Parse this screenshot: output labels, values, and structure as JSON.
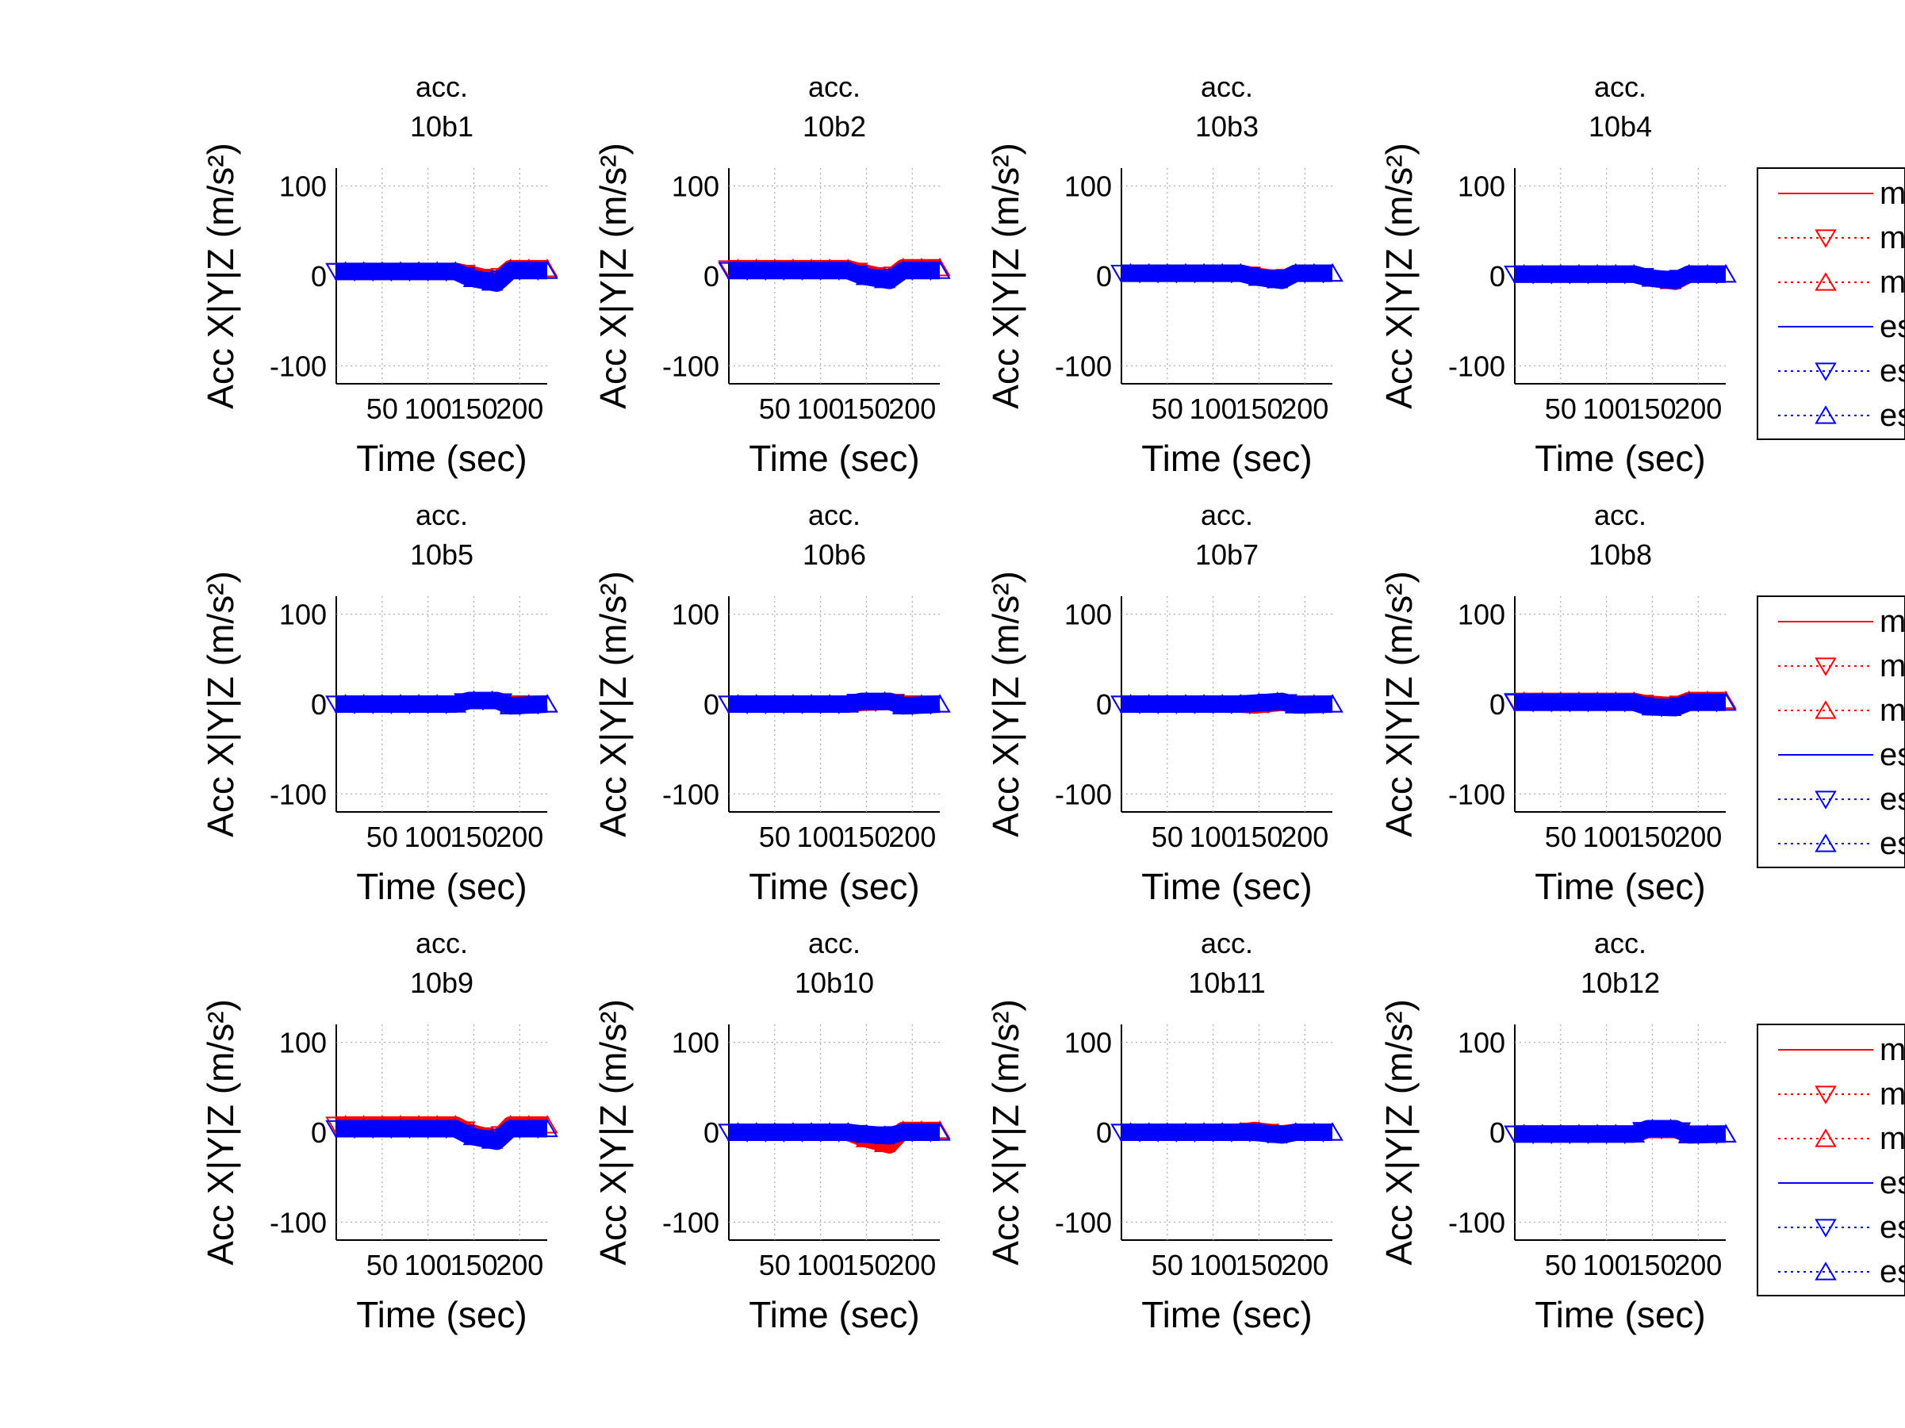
{
  "figure": {
    "common": {
      "xlabel": "Time (sec)",
      "ylabel": "Acc X|Y|Z (m/s²)",
      "title_prefix": "acc.",
      "xticks": [
        50,
        100,
        150,
        200
      ],
      "yticks": [
        -100,
        0,
        100
      ],
      "xlim": [
        0,
        230
      ],
      "ylim": [
        -120,
        120
      ],
      "grid": true
    },
    "legend": {
      "entries": [
        {
          "label": "m",
          "color": "#ff0000",
          "line": "solid",
          "marker": "none"
        },
        {
          "label": "m",
          "color": "#ff0000",
          "line": "dotted",
          "marker": "triangle-down"
        },
        {
          "label": "m",
          "color": "#ff0000",
          "line": "dotted",
          "marker": "triangle-up"
        },
        {
          "label": "es",
          "color": "#0000ff",
          "line": "solid",
          "marker": "none"
        },
        {
          "label": "es",
          "color": "#0000ff",
          "line": "dotted",
          "marker": "triangle-down"
        },
        {
          "label": "estimated z",
          "color": "#0000ff",
          "line": "dotted",
          "marker": "triangle-up"
        }
      ]
    }
  },
  "chart_data": [
    {
      "type": "line",
      "title": [
        "acc.",
        "10b1"
      ],
      "xlabel": "Time (sec)",
      "ylabel": "Acc X|Y|Z (m/s²)",
      "xlim": [
        0,
        230
      ],
      "ylim": [
        -120,
        120
      ],
      "x": [
        0,
        130,
        145,
        175,
        190,
        230
      ],
      "series": [
        {
          "name": "",
          "color": "#ff0000",
          "values": [
            5,
            5,
            2,
            -5,
            8,
            8
          ]
        },
        {
          "name": "",
          "color": "#0000ff",
          "values": [
            5,
            5,
            -2,
            -8,
            6,
            6
          ]
        }
      ]
    },
    {
      "type": "line",
      "title": [
        "acc.",
        "10b2"
      ],
      "xlabel": "Time (sec)",
      "ylabel": "Acc X|Y|Z (m/s²)",
      "xlim": [
        0,
        230
      ],
      "ylim": [
        -120,
        120
      ],
      "x": [
        0,
        130,
        145,
        175,
        190,
        230
      ],
      "series": [
        {
          "name": "",
          "color": "#ff0000",
          "values": [
            8,
            8,
            4,
            -3,
            9,
            9
          ]
        },
        {
          "name": "",
          "color": "#0000ff",
          "values": [
            6,
            6,
            0,
            -5,
            6,
            6
          ]
        }
      ]
    },
    {
      "type": "line",
      "title": [
        "acc.",
        "10b3"
      ],
      "xlabel": "Time (sec)",
      "ylabel": "Acc X|Y|Z (m/s²)",
      "xlim": [
        0,
        230
      ],
      "ylim": [
        -120,
        120
      ],
      "x": [
        0,
        130,
        145,
        175,
        190,
        230
      ],
      "series": [
        {
          "name": "",
          "color": "#ff0000",
          "values": [
            3,
            3,
            0,
            -4,
            3,
            3
          ]
        },
        {
          "name": "",
          "color": "#0000ff",
          "values": [
            3,
            3,
            -1,
            -5,
            3,
            3
          ]
        }
      ]
    },
    {
      "type": "line",
      "title": [
        "acc.",
        "10b4"
      ],
      "xlabel": "Time (sec)",
      "ylabel": "Acc X|Y|Z (m/s²)",
      "xlim": [
        0,
        230
      ],
      "ylim": [
        -120,
        120
      ],
      "x": [
        0,
        130,
        145,
        175,
        190,
        230
      ],
      "series": [
        {
          "name": "",
          "color": "#ff0000",
          "values": [
            2,
            2,
            -2,
            -6,
            2,
            2
          ]
        },
        {
          "name": "",
          "color": "#0000ff",
          "values": [
            2,
            2,
            -2,
            -5,
            2,
            2
          ]
        }
      ]
    },
    {
      "type": "line",
      "title": [
        "acc.",
        "10b5"
      ],
      "xlabel": "Time (sec)",
      "ylabel": "Acc X|Y|Z (m/s²)",
      "xlim": [
        0,
        230
      ],
      "ylim": [
        -120,
        120
      ],
      "x": [
        0,
        130,
        145,
        175,
        190,
        230
      ],
      "series": [
        {
          "name": "",
          "color": "#ff0000",
          "values": [
            0,
            0,
            4,
            4,
            0,
            0
          ]
        },
        {
          "name": "",
          "color": "#0000ff",
          "values": [
            0,
            0,
            4,
            4,
            -2,
            0
          ]
        }
      ]
    },
    {
      "type": "line",
      "title": [
        "acc.",
        "10b6"
      ],
      "xlabel": "Time (sec)",
      "ylabel": "Acc X|Y|Z (m/s²)",
      "xlim": [
        0,
        230
      ],
      "ylim": [
        -120,
        120
      ],
      "x": [
        0,
        130,
        145,
        175,
        190,
        230
      ],
      "series": [
        {
          "name": "",
          "color": "#ff0000",
          "values": [
            0,
            0,
            2,
            3,
            0,
            0
          ]
        },
        {
          "name": "",
          "color": "#0000ff",
          "values": [
            0,
            0,
            3,
            3,
            -2,
            0
          ]
        }
      ]
    },
    {
      "type": "line",
      "title": [
        "acc.",
        "10b7"
      ],
      "xlabel": "Time (sec)",
      "ylabel": "Acc X|Y|Z (m/s²)",
      "xlim": [
        0,
        230
      ],
      "ylim": [
        -120,
        120
      ],
      "x": [
        0,
        130,
        145,
        175,
        190,
        230
      ],
      "series": [
        {
          "name": "",
          "color": "#ff0000",
          "values": [
            0,
            0,
            -1,
            2,
            0,
            0
          ]
        },
        {
          "name": "",
          "color": "#0000ff",
          "values": [
            0,
            0,
            1,
            3,
            -1,
            0
          ]
        }
      ]
    },
    {
      "type": "line",
      "title": [
        "acc.",
        "10b8"
      ],
      "xlabel": "Time (sec)",
      "ylabel": "Acc X|Y|Z (m/s²)",
      "xlim": [
        0,
        230
      ],
      "ylim": [
        -120,
        120
      ],
      "x": [
        0,
        130,
        145,
        175,
        190,
        230
      ],
      "series": [
        {
          "name": "",
          "color": "#ff0000",
          "values": [
            3,
            3,
            0,
            -2,
            4,
            4
          ]
        },
        {
          "name": "",
          "color": "#0000ff",
          "values": [
            2,
            2,
            -3,
            -4,
            2,
            2
          ]
        }
      ]
    },
    {
      "type": "line",
      "title": [
        "acc.",
        "10b9"
      ],
      "xlabel": "Time (sec)",
      "ylabel": "Acc X|Y|Z (m/s²)",
      "xlim": [
        0,
        230
      ],
      "ylim": [
        -120,
        120
      ],
      "x": [
        0,
        130,
        145,
        175,
        190,
        230
      ],
      "series": [
        {
          "name": "",
          "color": "#ff0000",
          "values": [
            8,
            8,
            0,
            -8,
            8,
            8
          ]
        },
        {
          "name": "",
          "color": "#0000ff",
          "values": [
            4,
            4,
            -4,
            -10,
            4,
            4
          ]
        }
      ]
    },
    {
      "type": "line",
      "title": [
        "acc.",
        "10b10"
      ],
      "xlabel": "Time (sec)",
      "ylabel": "Acc X|Y|Z (m/s²)",
      "xlim": [
        0,
        230
      ],
      "ylim": [
        -120,
        120
      ],
      "x": [
        0,
        130,
        145,
        175,
        190,
        230
      ],
      "series": [
        {
          "name": "",
          "color": "#ff0000",
          "values": [
            0,
            0,
            -6,
            -14,
            2,
            2
          ]
        },
        {
          "name": "",
          "color": "#0000ff",
          "values": [
            0,
            0,
            -2,
            -4,
            0,
            0
          ]
        }
      ]
    },
    {
      "type": "line",
      "title": [
        "acc.",
        "10b11"
      ],
      "xlabel": "Time (sec)",
      "ylabel": "Acc X|Y|Z (m/s²)",
      "xlim": [
        0,
        230
      ],
      "ylim": [
        -120,
        120
      ],
      "x": [
        0,
        130,
        145,
        175,
        190,
        230
      ],
      "series": [
        {
          "name": "",
          "color": "#ff0000",
          "values": [
            0,
            0,
            2,
            -2,
            0,
            0
          ]
        },
        {
          "name": "",
          "color": "#0000ff",
          "values": [
            0,
            0,
            0,
            -3,
            0,
            0
          ]
        }
      ]
    },
    {
      "type": "line",
      "title": [
        "acc.",
        "10b12"
      ],
      "xlabel": "Time (sec)",
      "ylabel": "Acc X|Y|Z (m/s²)",
      "xlim": [
        0,
        230
      ],
      "ylim": [
        -120,
        120
      ],
      "x": [
        0,
        130,
        145,
        175,
        190,
        230
      ],
      "series": [
        {
          "name": "",
          "color": "#ff0000",
          "values": [
            -2,
            -2,
            3,
            3,
            -2,
            -2
          ]
        },
        {
          "name": "",
          "color": "#0000ff",
          "values": [
            -2,
            -2,
            4,
            4,
            -3,
            -2
          ]
        }
      ]
    }
  ]
}
